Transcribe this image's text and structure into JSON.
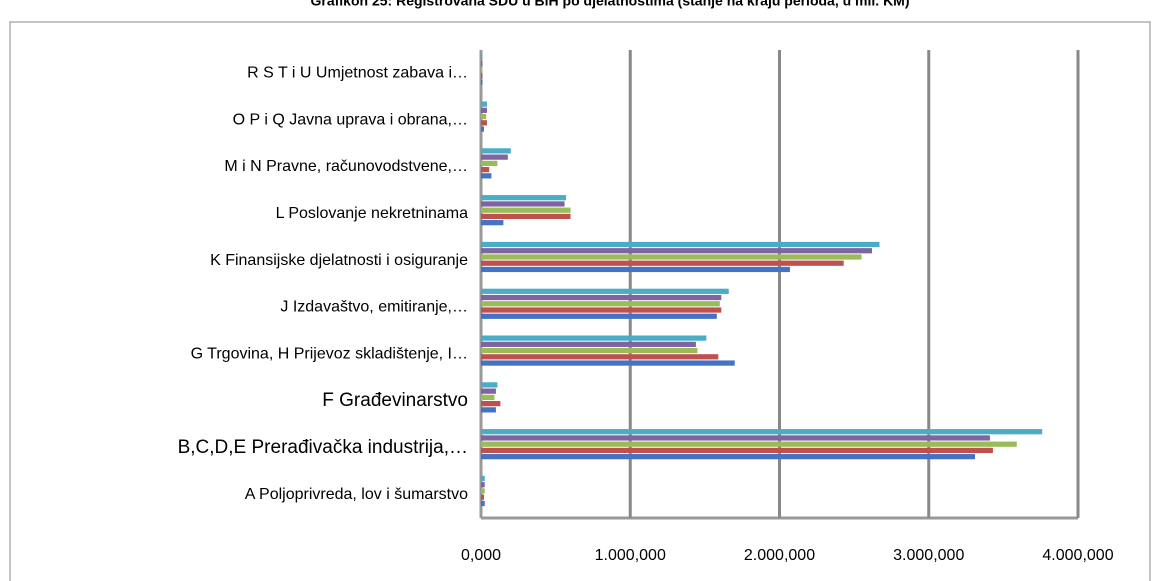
{
  "chart_data": {
    "type": "bar",
    "orientation": "horizontal",
    "title": "Grafikon 25: Registrovana SDU u BiH po djelatnostima (stanje na kraju perioda, u mil. KM)",
    "categories": [
      "A Poljoprivreda, lov i šumarstvo",
      "B,C,D,E Prerađivačka industrija,…",
      "F Građevinarstvo",
      "G Trgovina, H Prijevoz skladištenje, I…",
      "J Izdavaštvo, emitiranje,…",
      "K Finansijske djelatnosti i osiguranje",
      "L Poslovanje nekretninama",
      "M i N Pravne, računovodstvene,…",
      "O P i Q Javna uprava i obrana,…",
      "R S T i U Umjetnost zabava i…"
    ],
    "series": [
      {
        "color": "#4472c4",
        "values": [
          25,
          3310,
          100,
          1700,
          1580,
          2070,
          150,
          70,
          20,
          10
        ]
      },
      {
        "color": "#c0504d",
        "values": [
          20,
          3430,
          130,
          1590,
          1610,
          2430,
          600,
          55,
          40,
          10
        ]
      },
      {
        "color": "#9bbb59",
        "values": [
          25,
          3590,
          90,
          1450,
          1600,
          2550,
          600,
          110,
          35,
          10
        ]
      },
      {
        "color": "#8064a2",
        "values": [
          25,
          3410,
          100,
          1440,
          1610,
          2620,
          560,
          180,
          40,
          10
        ]
      },
      {
        "color": "#4bacc6",
        "values": [
          25,
          3760,
          110,
          1510,
          1660,
          2670,
          570,
          200,
          40,
          10
        ]
      }
    ],
    "xlim": [
      0,
      4000
    ],
    "xticks": [
      {
        "value": 0,
        "label": "0,000"
      },
      {
        "value": 1000,
        "label": "1.000,000"
      },
      {
        "value": 2000,
        "label": "2.000,000"
      },
      {
        "value": 3000,
        "label": "3.000,000"
      },
      {
        "value": 4000,
        "label": "4.000,000"
      }
    ],
    "grid": true
  }
}
